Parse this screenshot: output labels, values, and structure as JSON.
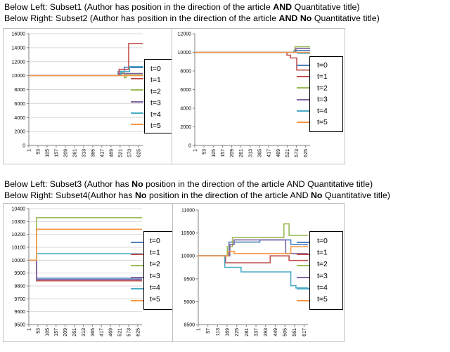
{
  "captions": {
    "top_left": [
      "Below Left: Subset1 (Author has position in the direction of the article ",
      "AND",
      " Quantitative title)"
    ],
    "top_right": [
      "Below Right: Subset2 (Author has position in the direction of the article ",
      "AND",
      " ",
      "No",
      " Quantitative title)"
    ],
    "bottom_left": [
      "Below Left: Subset3 (Author has ",
      "No",
      " position in the direction of the article AND  Quantitative title)"
    ],
    "bottom_right": [
      "Below Right: Subset4(Author has ",
      "No",
      " position in the direction of the article AND ",
      "No",
      " Quantitative title)"
    ]
  },
  "legend_labels": [
    "t=0",
    "t=1",
    "t=2",
    "t=3",
    "t=4",
    "t=5"
  ],
  "series_colors": [
    "#4f81bd",
    "#c0504d",
    "#9bbb59",
    "#8064a2",
    "#4bacc6",
    "#f79646"
  ],
  "chart_data": [
    {
      "type": "line",
      "subset": "Subset1",
      "xticks": [
        "1",
        "53",
        "105",
        "157",
        "209",
        "261",
        "313",
        "365",
        "417",
        "469",
        "521",
        "573",
        "625"
      ],
      "xmax": 650,
      "ylim": [
        0,
        16000
      ],
      "yticks": [
        "0",
        "2000",
        "4000",
        "6000",
        "8000",
        "10000",
        "12000",
        "14000",
        "16000"
      ],
      "grid": true,
      "series": [
        {
          "label_index": 0,
          "points": [
            [
              1,
              10000
            ],
            [
              510,
              10000
            ],
            [
              510,
              10600
            ],
            [
              545,
              10600
            ],
            [
              545,
              11200
            ],
            [
              650,
              11200
            ]
          ]
        },
        {
          "label_index": 1,
          "points": [
            [
              1,
              10000
            ],
            [
              515,
              10000
            ],
            [
              515,
              10900
            ],
            [
              570,
              10900
            ],
            [
              570,
              14600
            ],
            [
              650,
              14600
            ]
          ]
        },
        {
          "label_index": 2,
          "points": [
            [
              1,
              10000
            ],
            [
              530,
              10000
            ],
            [
              530,
              10400
            ],
            [
              545,
              10400
            ],
            [
              545,
              9700
            ],
            [
              555,
              9700
            ],
            [
              555,
              10200
            ],
            [
              650,
              10200
            ]
          ]
        },
        {
          "label_index": 3,
          "points": [
            [
              1,
              10000
            ],
            [
              520,
              10000
            ],
            [
              520,
              10300
            ],
            [
              650,
              10300
            ]
          ]
        },
        {
          "label_index": 4,
          "points": [
            [
              1,
              10000
            ],
            [
              525,
              10000
            ],
            [
              525,
              10600
            ],
            [
              575,
              10600
            ],
            [
              575,
              11300
            ],
            [
              650,
              11300
            ]
          ]
        },
        {
          "label_index": 5,
          "points": [
            [
              1,
              10000
            ],
            [
              650,
              10000
            ]
          ]
        }
      ]
    },
    {
      "type": "line",
      "subset": "Subset2",
      "xticks": [
        "1",
        "53",
        "105",
        "157",
        "209",
        "261",
        "313",
        "365",
        "417",
        "469",
        "521",
        "573",
        "625"
      ],
      "xmax": 650,
      "ylim": [
        0,
        12000
      ],
      "yticks": [
        "0",
        "2000",
        "4000",
        "6000",
        "8000",
        "10000",
        "12000"
      ],
      "grid": false,
      "series": [
        {
          "label_index": 0,
          "points": [
            [
              1,
              10000
            ],
            [
              560,
              10000
            ],
            [
              560,
              10200
            ],
            [
              650,
              10200
            ]
          ]
        },
        {
          "label_index": 1,
          "points": [
            [
              1,
              10000
            ],
            [
              520,
              10000
            ],
            [
              520,
              9700
            ],
            [
              540,
              9700
            ],
            [
              540,
              9400
            ],
            [
              575,
              9400
            ],
            [
              575,
              8100
            ],
            [
              650,
              8100
            ]
          ]
        },
        {
          "label_index": 2,
          "points": [
            [
              1,
              10000
            ],
            [
              565,
              10000
            ],
            [
              565,
              10600
            ],
            [
              650,
              10600
            ]
          ]
        },
        {
          "label_index": 3,
          "points": [
            [
              1,
              10000
            ],
            [
              570,
              10000
            ],
            [
              570,
              10400
            ],
            [
              650,
              10400
            ]
          ]
        },
        {
          "label_index": 4,
          "points": [
            [
              1,
              10000
            ],
            [
              580,
              10000
            ],
            [
              580,
              9900
            ],
            [
              650,
              9900
            ]
          ]
        },
        {
          "label_index": 5,
          "points": [
            [
              1,
              10000
            ],
            [
              650,
              10000
            ]
          ]
        }
      ]
    },
    {
      "type": "line",
      "subset": "Subset3",
      "xticks": [
        "1",
        "53",
        "105",
        "157",
        "209",
        "261",
        "313",
        "365",
        "417",
        "469",
        "521",
        "573",
        "625"
      ],
      "xmax": 650,
      "ylim": [
        9500,
        10400
      ],
      "yticks": [
        "9500",
        "9600",
        "9700",
        "9800",
        "9900",
        "10000",
        "10100",
        "10200",
        "10300",
        "10400"
      ],
      "grid": true,
      "series": [
        {
          "label_index": 0,
          "points": [
            [
              1,
              10000
            ],
            [
              45,
              10000
            ],
            [
              45,
              9860
            ],
            [
              650,
              9860
            ]
          ]
        },
        {
          "label_index": 1,
          "points": [
            [
              1,
              10000
            ],
            [
              45,
              10000
            ],
            [
              45,
              9840
            ],
            [
              650,
              9840
            ]
          ]
        },
        {
          "label_index": 2,
          "points": [
            [
              1,
              10000
            ],
            [
              45,
              10000
            ],
            [
              45,
              10330
            ],
            [
              650,
              10330
            ]
          ]
        },
        {
          "label_index": 3,
          "points": [
            [
              1,
              10000
            ],
            [
              45,
              10000
            ],
            [
              45,
              9850
            ],
            [
              650,
              9850
            ]
          ]
        },
        {
          "label_index": 4,
          "points": [
            [
              1,
              10000
            ],
            [
              45,
              10000
            ],
            [
              45,
              10050
            ],
            [
              650,
              10050
            ]
          ]
        },
        {
          "label_index": 5,
          "points": [
            [
              1,
              10000
            ],
            [
              45,
              10000
            ],
            [
              45,
              10240
            ],
            [
              650,
              10240
            ]
          ]
        }
      ]
    },
    {
      "type": "line",
      "subset": "Subset4",
      "xticks": [
        "1",
        "57",
        "113",
        "169",
        "225",
        "281",
        "337",
        "393",
        "449",
        "505",
        "561",
        "617"
      ],
      "xmax": 640,
      "ylim": [
        8500,
        11000
      ],
      "yticks": [
        "8500",
        "9000",
        "9500",
        "10000",
        "10500",
        "11000"
      ],
      "grid": false,
      "series": [
        {
          "label_index": 0,
          "points": [
            [
              1,
              10000
            ],
            [
              180,
              10000
            ],
            [
              180,
              10300
            ],
            [
              360,
              10300
            ],
            [
              360,
              10350
            ],
            [
              540,
              10350
            ],
            [
              540,
              10250
            ],
            [
              640,
              10250
            ]
          ]
        },
        {
          "label_index": 1,
          "points": [
            [
              1,
              10000
            ],
            [
              160,
              10000
            ],
            [
              160,
              9850
            ],
            [
              420,
              9850
            ],
            [
              420,
              10000
            ],
            [
              530,
              10000
            ],
            [
              530,
              9900
            ],
            [
              640,
              9900
            ]
          ]
        },
        {
          "label_index": 2,
          "points": [
            [
              1,
              10000
            ],
            [
              170,
              10000
            ],
            [
              170,
              10200
            ],
            [
              200,
              10200
            ],
            [
              200,
              10400
            ],
            [
              500,
              10400
            ],
            [
              500,
              10700
            ],
            [
              530,
              10700
            ],
            [
              530,
              10450
            ],
            [
              640,
              10450
            ]
          ]
        },
        {
          "label_index": 3,
          "points": [
            [
              1,
              10000
            ],
            [
              185,
              10000
            ],
            [
              185,
              10250
            ],
            [
              210,
              10250
            ],
            [
              210,
              10350
            ],
            [
              510,
              10350
            ],
            [
              510,
              10050
            ],
            [
              640,
              10050
            ]
          ]
        },
        {
          "label_index": 4,
          "points": [
            [
              1,
              10000
            ],
            [
              155,
              10000
            ],
            [
              155,
              9750
            ],
            [
              250,
              9750
            ],
            [
              250,
              9650
            ],
            [
              540,
              9650
            ],
            [
              540,
              9350
            ],
            [
              570,
              9350
            ],
            [
              570,
              9300
            ],
            [
              640,
              9300
            ]
          ]
        },
        {
          "label_index": 5,
          "points": [
            [
              1,
              10000
            ],
            [
              175,
              10000
            ],
            [
              175,
              10100
            ],
            [
              210,
              10100
            ],
            [
              210,
              10050
            ],
            [
              540,
              10050
            ],
            [
              540,
              10200
            ],
            [
              640,
              10200
            ]
          ]
        }
      ]
    }
  ]
}
